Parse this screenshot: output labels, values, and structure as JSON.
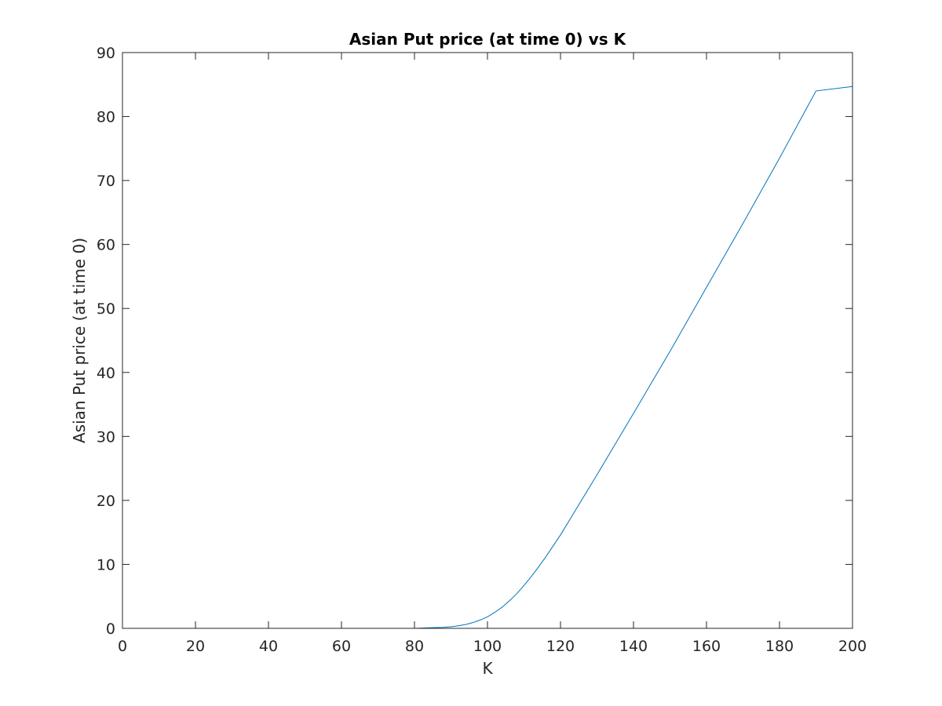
{
  "chart_data": {
    "type": "line",
    "title": "Asian Put price (at time 0) vs K",
    "xlabel": "K",
    "ylabel": "Asian Put price (at time 0)",
    "xlim": [
      0,
      200
    ],
    "ylim": [
      0,
      90
    ],
    "xticks": [
      "0",
      "20",
      "40",
      "60",
      "80",
      "100",
      "120",
      "140",
      "160",
      "180",
      "200"
    ],
    "yticks": [
      "0",
      "10",
      "20",
      "30",
      "40",
      "50",
      "60",
      "70",
      "80",
      "90"
    ],
    "grid": false,
    "box": true,
    "colors": {
      "line": "#0072BD",
      "axes": "#262626"
    },
    "series": [
      {
        "x": [
          1,
          20,
          40,
          60,
          80,
          85,
          88,
          90,
          92,
          94,
          96,
          98,
          100,
          102,
          104,
          106,
          108,
          110,
          112,
          114,
          116,
          118,
          120,
          125,
          130,
          135,
          140,
          150,
          160,
          170,
          180,
          190,
          200
        ],
        "values": [
          0,
          0,
          0,
          0,
          0,
          0.1,
          0.15,
          0.25,
          0.4,
          0.6,
          0.9,
          1.3,
          1.8,
          2.5,
          3.3,
          4.3,
          5.4,
          6.7,
          8.1,
          9.6,
          11.2,
          12.9,
          14.6,
          19.3,
          24.0,
          28.8,
          33.6,
          43.3,
          53.3,
          63.3,
          73.5,
          84.0,
          84.7
        ]
      }
    ]
  }
}
